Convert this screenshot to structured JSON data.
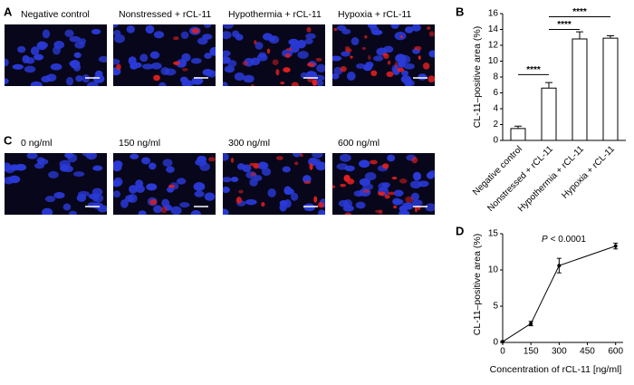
{
  "panels": {
    "A": {
      "label": "A",
      "images": [
        "Negative control",
        "Nonstressed + rCL-11",
        "Hypothermia + rCL-11",
        "Hypoxia + rCL-11"
      ]
    },
    "C": {
      "label": "C",
      "images": [
        "0 ng/ml",
        "150 ng/ml",
        "300 ng/ml",
        "600 ng/ml"
      ]
    }
  },
  "chart_data": [
    {
      "type": "bar",
      "panel": "B",
      "y_label": "CL-11–positive area (%)",
      "categories": [
        "Negative control",
        "Nonstressed + rCL-11",
        "Hypothermia + rCL-11",
        "Hypoxia + rCL-11"
      ],
      "values": [
        1.5,
        6.6,
        12.8,
        12.9
      ],
      "errors": [
        0.3,
        0.7,
        0.9,
        0.3
      ],
      "color": "#ffffff",
      "ylim": [
        0,
        16
      ],
      "yticks": [
        0,
        2,
        4,
        6,
        8,
        10,
        12,
        14,
        16
      ],
      "significance": [
        {
          "label": "****",
          "from": 0,
          "to": 1,
          "y": 8.3
        },
        {
          "label": "****",
          "from": 1,
          "to": 2,
          "y": 14.0
        },
        {
          "label": "****",
          "from": 1,
          "to": 3,
          "y": 15.6
        }
      ]
    },
    {
      "type": "line",
      "panel": "D",
      "x_label": "Concentration of rCL-11 [ng/ml]",
      "y_label": "CL-11–positive area (%)",
      "annotation": {
        "italic": "P",
        "text": "< 0.0001"
      },
      "x": [
        0,
        150,
        300,
        600
      ],
      "values": [
        0.1,
        2.6,
        10.6,
        13.3
      ],
      "errors": [
        0.1,
        0.3,
        1.0,
        0.4
      ],
      "color": "#000000",
      "xlim": [
        0,
        640
      ],
      "xticks": [
        0,
        150,
        300,
        450,
        600
      ],
      "ylim": [
        0,
        15
      ],
      "yticks": [
        0,
        5,
        10,
        15
      ]
    }
  ]
}
